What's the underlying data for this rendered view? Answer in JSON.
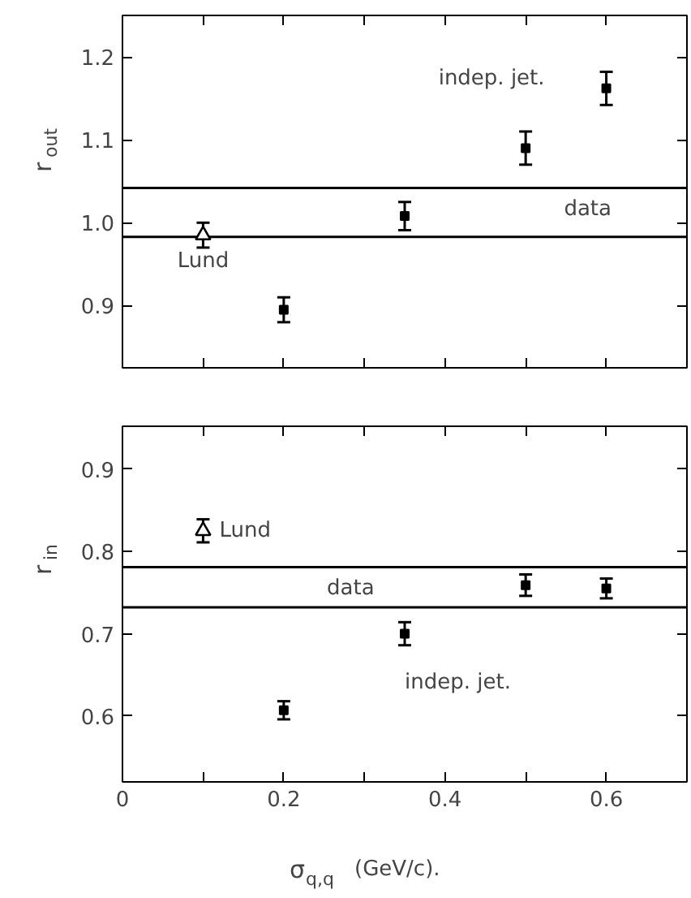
{
  "chart_data": [
    {
      "type": "scatter",
      "ylabel": "r$_{out}$",
      "xlim": [
        0,
        0.7
      ],
      "ylim": [
        0.825,
        1.25
      ],
      "tick_labels": "y",
      "xticks": [
        {
          "value": 0,
          "label": null
        },
        {
          "value": 0.1,
          "label": null
        },
        {
          "value": 0.2,
          "label": null
        },
        {
          "value": 0.3,
          "label": null
        },
        {
          "value": 0.4,
          "label": null
        },
        {
          "value": 0.5,
          "label": null
        },
        {
          "value": 0.6,
          "label": null
        }
      ],
      "yticks": [
        0.9,
        {
          "value": 1,
          "label": "1.0"
        },
        1.1,
        1.2
      ],
      "series": [
        {
          "name": "Lund",
          "color": "#000000",
          "marker": "triangle",
          "x": [
            0.1
          ],
          "values": [
            0.985
          ],
          "errors": [
            0.015
          ]
        },
        {
          "name": "indep. jet.",
          "color": "#000000",
          "marker": "square",
          "x": [
            0.2,
            0.35,
            0.5,
            0.6
          ],
          "values": [
            0.895,
            1.008,
            1.09,
            1.162
          ],
          "errors": [
            0.015,
            0.017,
            0.02,
            0.02
          ]
        }
      ],
      "ref_lines": [
        {
          "axis": "y",
          "value": 0.983,
          "color": "#000000"
        },
        {
          "axis": "y",
          "value": 1.042,
          "label": "data",
          "color": "#000000"
        }
      ]
    },
    {
      "type": "scatter",
      "ylabel": "r$_{in}$",
      "xlabel": "σ$_{q,q}$  (GeV/c).",
      "xlim": [
        0,
        0.7
      ],
      "ylim": [
        0.52,
        0.952
      ],
      "xticks": [
        0,
        {
          "value": 0.1,
          "label": null
        },
        0.2,
        {
          "value": 0.3,
          "label": null
        },
        0.4,
        {
          "value": 0.5,
          "label": null
        },
        0.6
      ],
      "yticks": [
        0.6,
        0.7,
        0.8,
        0.9
      ],
      "series": [
        {
          "name": "Lund",
          "color": "#000000",
          "marker": "triangle",
          "x": [
            0.1
          ],
          "values": [
            0.825
          ],
          "errors": [
            0.014
          ]
        },
        {
          "name": "indep. jet.",
          "color": "#000000",
          "marker": "square",
          "x": [
            0.2,
            0.35,
            0.5,
            0.6
          ],
          "values": [
            0.607,
            0.7,
            0.759,
            0.755
          ],
          "errors": [
            0.011,
            0.014,
            0.013,
            0.012
          ]
        }
      ],
      "ref_lines": [
        {
          "axis": "y",
          "value": 0.732,
          "color": "#000000"
        },
        {
          "axis": "y",
          "value": 0.781,
          "label": "data",
          "color": "#000000"
        }
      ]
    }
  ]
}
